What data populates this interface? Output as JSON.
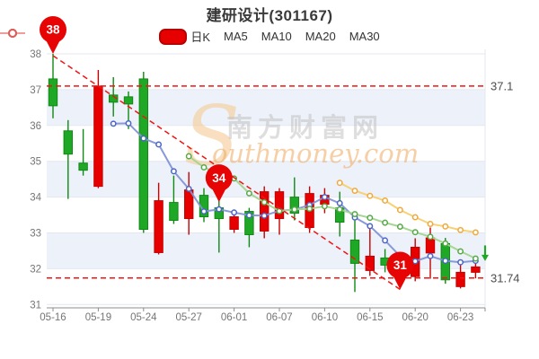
{
  "title": "建研设计(301167)",
  "legend": {
    "items": [
      {
        "label": "日K",
        "kind": "kline",
        "color": "#e60000",
        "border": "#b80000"
      },
      {
        "label": "MA5",
        "kind": "ma",
        "color": "#4a64c8",
        "line": "#8294d6"
      },
      {
        "label": "MA10",
        "kind": "ma",
        "color": "#54a945",
        "line": "#a2d48e"
      },
      {
        "label": "MA20",
        "kind": "ma",
        "color": "#efa83a",
        "line": "#f8cf6e"
      },
      {
        "label": "MA30",
        "kind": "ma",
        "color": "#e05a5a",
        "line": "#ee9c9c"
      }
    ]
  },
  "watermark": {
    "big_s": "S",
    "cjk": "南方财富网",
    "latin": "outhmoney.com"
  },
  "colors": {
    "up_fill": "#e60000",
    "up_stroke": "#c40202",
    "down_fill": "#1fa826",
    "down_stroke": "#0f8a14",
    "ref_line": "#f01414",
    "pin": "#e60404",
    "pin_text": "#ffffff",
    "band": "#edf1f9",
    "grid": "#e3e7ef",
    "axis": "#8c8c8c",
    "tick_text": "#757575",
    "ref_label_text": "#4d4d4d",
    "wm_s": "#f6cd98",
    "wm_cjk": "#bfbfbf",
    "wm_latin": "#efa95f",
    "end_arrow": "#1fa826"
  },
  "chart_data": {
    "type": "candlestick",
    "title": "建研设计(301167)",
    "ylim": [
      31,
      38
    ],
    "y_ticks": [
      31,
      32,
      33,
      34,
      35,
      36,
      37,
      38
    ],
    "dates": [
      "05-16",
      "05-17",
      "05-18",
      "05-19",
      "05-20",
      "05-23",
      "05-24",
      "05-25",
      "05-26",
      "05-27",
      "05-30",
      "05-31",
      "06-01",
      "06-02",
      "06-06",
      "06-07",
      "06-08",
      "06-09",
      "06-10",
      "06-13",
      "06-14",
      "06-15",
      "06-16",
      "06-17",
      "06-20",
      "06-21",
      "06-22",
      "06-23",
      "06-24"
    ],
    "x_tick_indices": [
      0,
      3,
      6,
      9,
      12,
      15,
      18,
      21,
      24,
      27
    ],
    "ohlc_format": [
      "open",
      "close",
      "high",
      "low"
    ],
    "candles": [
      [
        37.3,
        36.55,
        38.0,
        36.2
      ],
      [
        35.85,
        35.2,
        36.15,
        33.95
      ],
      [
        34.95,
        34.75,
        35.9,
        34.6
      ],
      [
        34.3,
        37.1,
        37.55,
        34.25
      ],
      [
        36.85,
        36.65,
        37.35,
        36.25
      ],
      [
        36.8,
        36.6,
        36.95,
        35.9
      ],
      [
        37.3,
        33.1,
        37.5,
        33.0
      ],
      [
        32.45,
        33.9,
        34.4,
        32.4
      ],
      [
        33.85,
        33.35,
        34.6,
        33.25
      ],
      [
        33.4,
        34.2,
        34.7,
        32.95
      ],
      [
        34.05,
        33.45,
        34.25,
        33.3
      ],
      [
        33.7,
        33.4,
        33.95,
        32.45
      ],
      [
        33.1,
        33.45,
        33.6,
        33.0
      ],
      [
        33.6,
        32.95,
        33.7,
        32.6
      ],
      [
        33.05,
        34.15,
        34.3,
        32.85
      ],
      [
        33.4,
        34.15,
        34.25,
        32.95
      ],
      [
        34.0,
        33.55,
        34.55,
        33.35
      ],
      [
        33.15,
        34.1,
        34.3,
        33.0
      ],
      [
        33.8,
        34.05,
        34.25,
        33.55
      ],
      [
        33.7,
        33.3,
        34.15,
        32.9
      ],
      [
        32.8,
        32.15,
        33.35,
        31.35
      ],
      [
        31.95,
        32.35,
        33.15,
        31.8
      ],
      [
        32.3,
        32.1,
        32.55,
        31.9
      ],
      [
        32.3,
        31.85,
        32.4,
        31.74
      ],
      [
        31.78,
        32.6,
        32.85,
        31.65
      ],
      [
        32.44,
        32.86,
        33.15,
        31.72
      ],
      [
        32.7,
        31.69,
        32.86,
        31.58
      ],
      [
        31.5,
        31.9,
        32.11,
        31.45
      ],
      [
        31.9,
        32.05,
        32.15,
        31.73
      ]
    ],
    "ma_series": [
      {
        "name": "MA5",
        "period": 5,
        "line": "#8294d6",
        "marker": "#4a64c8"
      },
      {
        "name": "MA10",
        "period": 10,
        "line": "#a2d48e",
        "marker": "#54a945"
      },
      {
        "name": "MA20",
        "period": 20,
        "line": "#f8cf6e",
        "marker": "#efa83a"
      },
      {
        "name": "MA30",
        "period": 30,
        "line": "#ee9c9c",
        "marker": "#e05a5a"
      }
    ],
    "ref_lines": [
      {
        "value": 37.1,
        "label": "37.1"
      },
      {
        "value": 31.74,
        "label": "31.74"
      }
    ],
    "trend_line": {
      "from": {
        "index": 0,
        "value": 37.95
      },
      "to": {
        "index": 23,
        "value": 31.42
      }
    },
    "pins": [
      {
        "label": "38",
        "index": 0,
        "value": 38.0
      },
      {
        "label": "34",
        "index": 11,
        "value": 33.86
      },
      {
        "label": "31",
        "index": 23,
        "value": 31.42
      }
    ],
    "end_arrow": {
      "value_from": 32.65,
      "value_to": 32.24
    }
  }
}
